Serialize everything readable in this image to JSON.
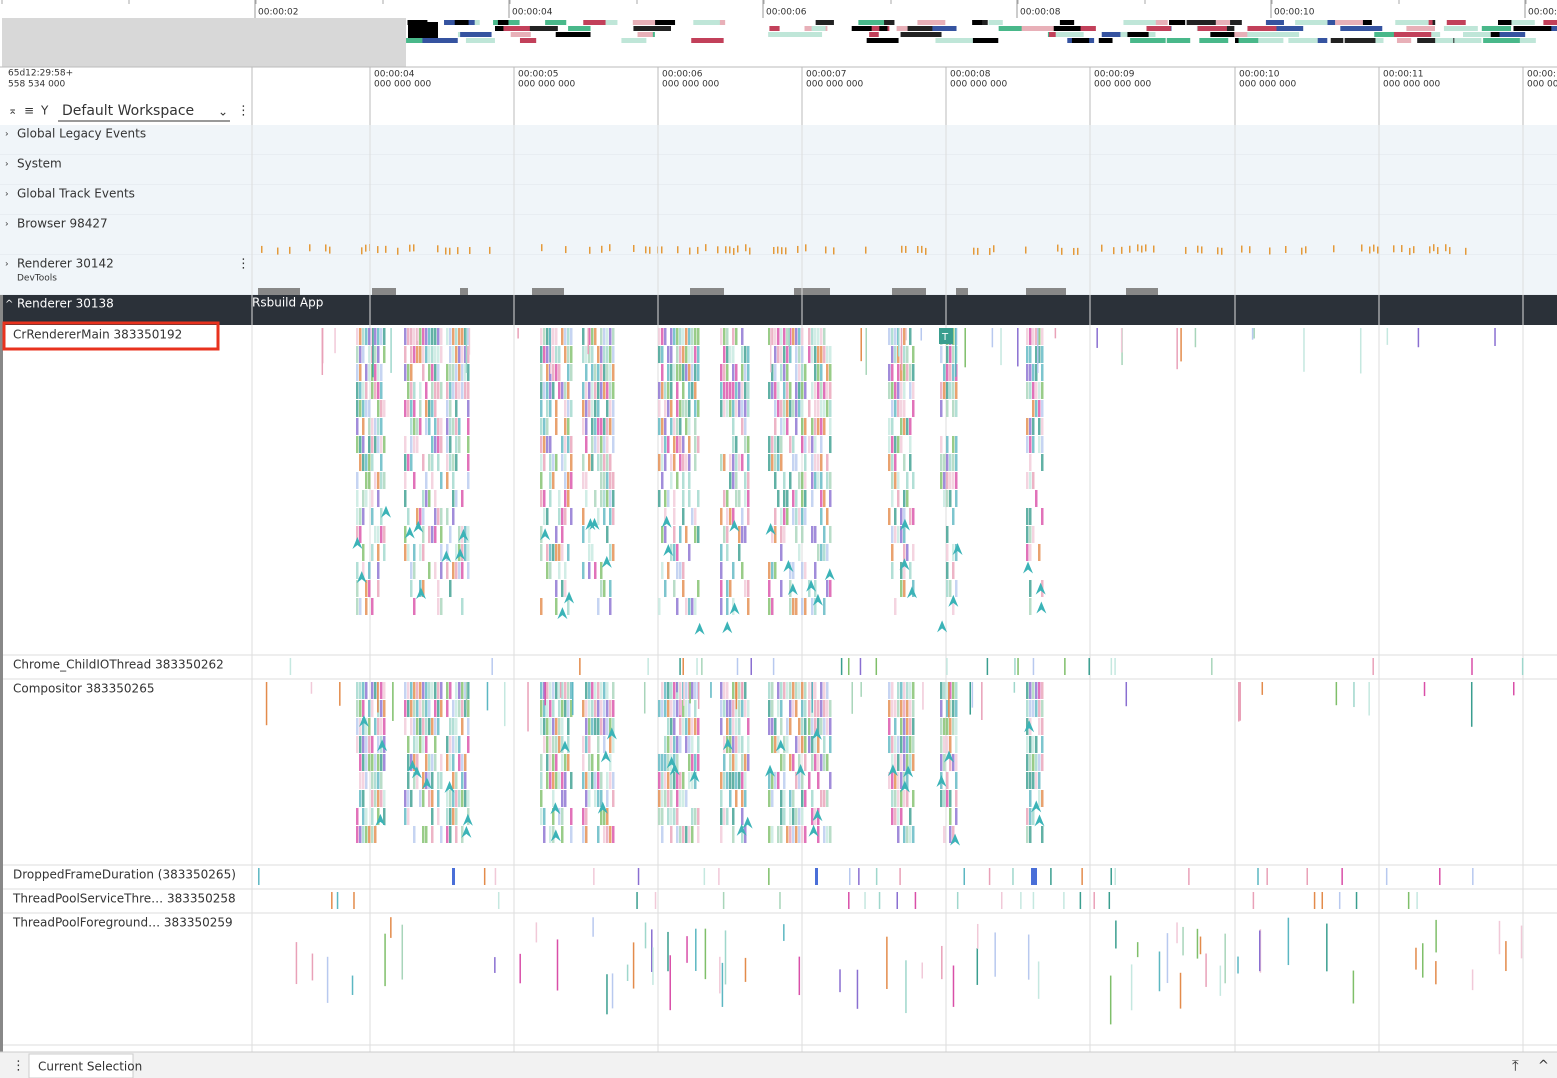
{
  "overview": {
    "ticks": [
      "00:00:02",
      "00:00:04",
      "00:00:06",
      "00:00:08",
      "00:00:10",
      "00:00:"
    ]
  },
  "timeline": {
    "origin": [
      "65d12:29:58+",
      "558 534 000"
    ],
    "ticks": [
      {
        "time": "00:00:04",
        "sub": "000 000 000"
      },
      {
        "time": "00:00:05",
        "sub": "000 000 000"
      },
      {
        "time": "00:00:06",
        "sub": "000 000 000"
      },
      {
        "time": "00:00:07",
        "sub": "000 000 000"
      },
      {
        "time": "00:00:08",
        "sub": "000 000 000"
      },
      {
        "time": "00:00:09",
        "sub": "000 000 000"
      },
      {
        "time": "00:00:10",
        "sub": "000 000 000"
      },
      {
        "time": "00:00:11",
        "sub": "000 000 000"
      },
      {
        "time": "00:00:1",
        "sub": "000 00"
      }
    ]
  },
  "workspace": "Default Workspace",
  "groups": [
    {
      "name": "Global Legacy Events"
    },
    {
      "name": "System"
    },
    {
      "name": "Global Track Events"
    },
    {
      "name": "Browser 98427"
    },
    {
      "name": "Renderer 30142",
      "subtitle": "DevTools"
    }
  ],
  "renderer": {
    "name": "Renderer 30138",
    "subtitle": "Rsbuild App",
    "threads": [
      "CrRendererMain 383350192",
      "Chrome_ChildIOThread 383350262",
      "Compositor 383350265",
      "DroppedFrameDuration (383350265)",
      "ThreadPoolServiceThre…  383350258",
      "ThreadPoolForeground…  383350259"
    ]
  },
  "slice_label": "T",
  "footer": {
    "tab": "Current Selection"
  }
}
